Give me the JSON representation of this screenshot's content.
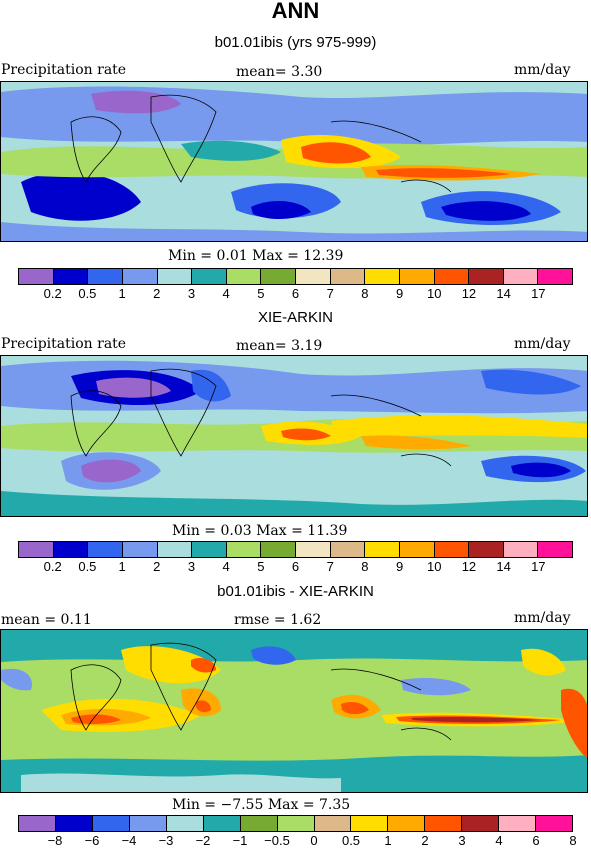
{
  "title": "ANN",
  "panels": [
    {
      "subtitle": "b01.01ibis (yrs 975-999)",
      "left_label": "Precipitation rate",
      "mid_label": "mean=   3.30",
      "right_label": "mm/day",
      "minmax": "Min =   0.01 Max =   12.39",
      "colors": [
        "#9966cc",
        "#0000cc",
        "#3366ee",
        "#7799ee",
        "#aadddd",
        "#22aaaa",
        "#aadd66",
        "#77aa33",
        "#f2e6c0",
        "#ddb888",
        "#ffdd00",
        "#ffaa00",
        "#ff5500",
        "#aa2222",
        "#ffb0c0",
        "#ff1199"
      ],
      "ticks": [
        "0.2",
        "0.5",
        "1",
        "2",
        "3",
        "4",
        "5",
        "6",
        "7",
        "8",
        "9",
        "10",
        "12",
        "14",
        "17"
      ]
    },
    {
      "subtitle": "XIE-ARKIN",
      "left_label": "Precipitation rate",
      "mid_label": "mean=   3.19",
      "right_label": "mm/day",
      "minmax": "Min =   0.03 Max =   11.39",
      "colors": [
        "#9966cc",
        "#0000cc",
        "#3366ee",
        "#7799ee",
        "#aadddd",
        "#22aaaa",
        "#aadd66",
        "#77aa33",
        "#f2e6c0",
        "#ddb888",
        "#ffdd00",
        "#ffaa00",
        "#ff5500",
        "#aa2222",
        "#ffb0c0",
        "#ff1199"
      ],
      "ticks": [
        "0.2",
        "0.5",
        "1",
        "2",
        "3",
        "4",
        "5",
        "6",
        "7",
        "8",
        "9",
        "10",
        "12",
        "14",
        "17"
      ]
    },
    {
      "subtitle": "b01.01ibis - XIE-ARKIN",
      "left_label": "mean =   0.11",
      "mid_label": "rmse =   1.62",
      "right_label": "mm/day",
      "minmax": "Min =  −7.55 Max =   7.35",
      "colors": [
        "#9966cc",
        "#0000cc",
        "#3366ee",
        "#7799ee",
        "#aadddd",
        "#22aaaa",
        "#77aa33",
        "#aadd66",
        "#ddb888",
        "#ffdd00",
        "#ffaa00",
        "#ff5500",
        "#aa2222",
        "#ffb0c0",
        "#ff1199"
      ],
      "ticks": [
        "−8",
        "−6",
        "−4",
        "−3",
        "−2",
        "−1",
        "−0.5",
        "0",
        "0.5",
        "1",
        "2",
        "3",
        "4",
        "6",
        "8"
      ]
    }
  ]
}
